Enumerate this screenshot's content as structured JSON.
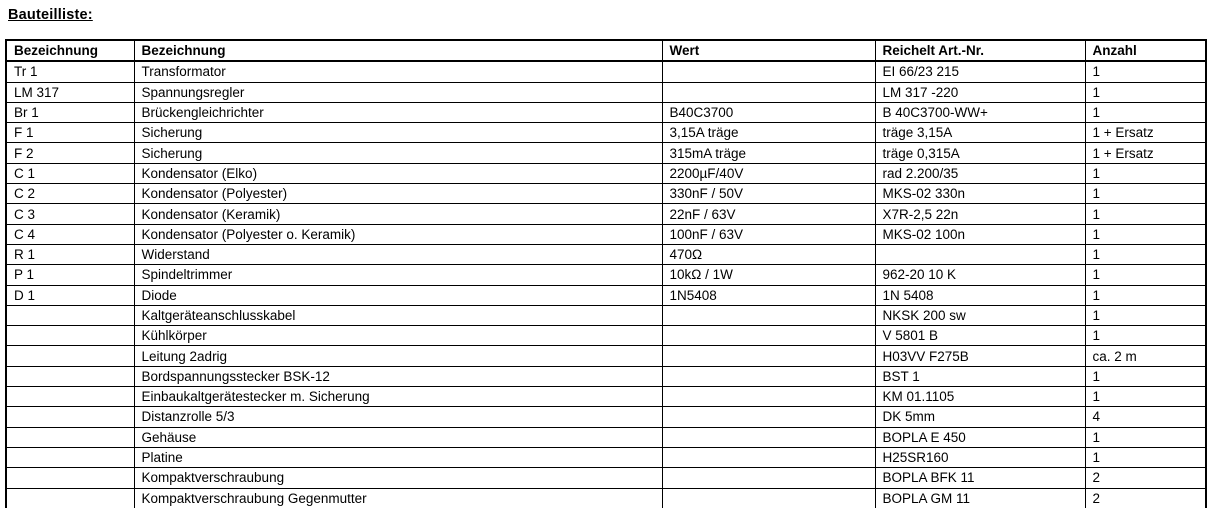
{
  "page": {
    "title": "Bauteilliste:"
  },
  "table": {
    "columns": [
      "Bezeichnung",
      "Bezeichnung",
      "Wert",
      "Reichelt Art.-Nr.",
      "Anzahl"
    ],
    "rows": [
      [
        "Tr 1",
        "Transformator",
        "",
        "EI 66/23 215",
        "1"
      ],
      [
        "LM 317",
        "Spannungsregler",
        "",
        "LM 317 -220",
        "1"
      ],
      [
        "Br 1",
        "Brückengleichrichter",
        "B40C3700",
        "B 40C3700-WW+",
        "1"
      ],
      [
        "F 1",
        "Sicherung",
        "3,15A träge",
        "träge 3,15A",
        "1 + Ersatz"
      ],
      [
        "F 2",
        "Sicherung",
        "315mA träge",
        "träge 0,315A",
        "1 + Ersatz"
      ],
      [
        "C 1",
        "Kondensator (Elko)",
        "2200µF/40V",
        "rad 2.200/35",
        "1"
      ],
      [
        "C 2",
        "Kondensator (Polyester)",
        "330nF / 50V",
        "MKS-02 330n",
        "1"
      ],
      [
        "C 3",
        "Kondensator (Keramik)",
        "22nF / 63V",
        "X7R-2,5 22n",
        "1"
      ],
      [
        "C 4",
        "Kondensator (Polyester o. Keramik)",
        "100nF / 63V",
        "MKS-02 100n",
        "1"
      ],
      [
        "R 1",
        "Widerstand",
        "470Ω",
        "",
        "1"
      ],
      [
        "P 1",
        "Spindeltrimmer",
        "10kΩ / 1W",
        "962-20 10 K",
        "1"
      ],
      [
        "D 1",
        "Diode",
        "1N5408",
        "1N 5408",
        "1"
      ],
      [
        "",
        "Kaltgeräteanschlusskabel",
        "",
        "NKSK 200 sw",
        "1"
      ],
      [
        "",
        "Kühlkörper",
        "",
        "V 5801 B",
        "1"
      ],
      [
        "",
        "Leitung 2adrig",
        "",
        "H03VV F275B",
        "ca. 2 m"
      ],
      [
        "",
        "Bordspannungsstecker BSK-12",
        "",
        "BST 1",
        "1"
      ],
      [
        "",
        "Einbaukaltgerätestecker m. Sicherung",
        "",
        "KM 01.1105",
        "1"
      ],
      [
        "",
        "Distanzrolle 5/3",
        "",
        "DK 5mm",
        "4"
      ],
      [
        "",
        "Gehäuse",
        "",
        "BOPLA E 450",
        "1"
      ],
      [
        "",
        "Platine",
        "",
        "H25SR160",
        "1"
      ],
      [
        "",
        "Kompaktverschraubung",
        "",
        "BOPLA BFK 11",
        "2"
      ],
      [
        "",
        "Kompaktverschraubung Gegenmutter",
        "",
        "BOPLA GM 11",
        "2"
      ]
    ]
  }
}
